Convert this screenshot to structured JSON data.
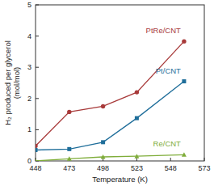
{
  "chart_data": {
    "type": "line",
    "xlabel": "Temperature (K)",
    "ylabel": [
      "H₂ produced per glycerol",
      "(mol/mol)"
    ],
    "x": [
      448,
      473,
      498,
      523,
      558
    ],
    "xlim": [
      448,
      573
    ],
    "xticks": [
      448,
      473,
      498,
      523,
      548,
      573
    ],
    "ylim": [
      0,
      5
    ],
    "yticks": [
      0,
      1,
      2,
      3,
      4,
      5
    ],
    "series": [
      {
        "name": "PtRe/CNT",
        "color": "#a83a3a",
        "marker": "circle",
        "values": [
          0.48,
          1.57,
          1.75,
          2.2,
          3.83
        ]
      },
      {
        "name": "Pt/CNT",
        "color": "#1f6e9a",
        "marker": "square",
        "values": [
          0.35,
          0.38,
          0.6,
          1.37,
          2.55
        ]
      },
      {
        "name": "Re/CNT",
        "color": "#7fad3a",
        "marker": "triangle",
        "values": [
          0.0,
          0.07,
          0.13,
          0.15,
          0.2
        ]
      }
    ]
  }
}
